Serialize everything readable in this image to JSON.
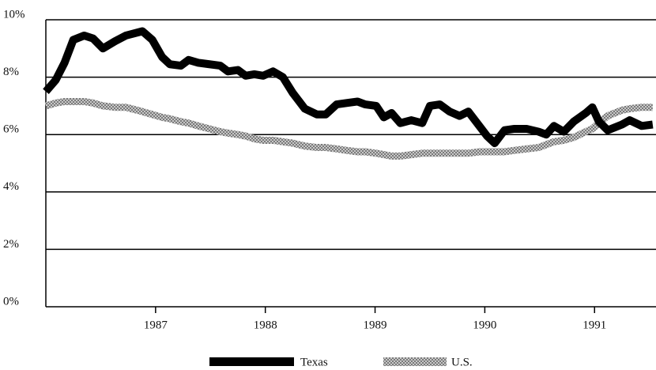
{
  "chart_data": {
    "type": "line",
    "x": [
      1986.0,
      1986.09,
      1986.17,
      1986.25,
      1986.35,
      1986.43,
      1986.52,
      1986.63,
      1986.73,
      1986.88,
      1986.97,
      1987.06,
      1987.13,
      1987.23,
      1987.3,
      1987.39,
      1987.49,
      1987.59,
      1987.66,
      1987.75,
      1987.82,
      1987.9,
      1987.98,
      1988.07,
      1988.16,
      1988.25,
      1988.36,
      1988.47,
      1988.55,
      1988.65,
      1988.74,
      1988.84,
      1988.91,
      1989.01,
      1989.08,
      1989.15,
      1989.23,
      1989.33,
      1989.43,
      1989.5,
      1989.59,
      1989.68,
      1989.77,
      1989.85,
      1989.95,
      1990.02,
      1990.09,
      1990.18,
      1990.27,
      1990.38,
      1990.49,
      1990.56,
      1990.63,
      1990.72,
      1990.81,
      1990.92,
      1990.98,
      1991.04,
      1991.12,
      1991.25,
      1991.32,
      1991.43,
      1991.53
    ],
    "series": [
      {
        "name": "Texas",
        "color": "#000000",
        "values": [
          7.5,
          7.9,
          8.5,
          9.3,
          9.45,
          9.35,
          9.0,
          9.25,
          9.45,
          9.6,
          9.3,
          8.7,
          8.45,
          8.4,
          8.6,
          8.5,
          8.45,
          8.4,
          8.2,
          8.25,
          8.05,
          8.1,
          8.05,
          8.2,
          8.0,
          7.45,
          6.9,
          6.7,
          6.7,
          7.05,
          7.1,
          7.15,
          7.05,
          7.0,
          6.6,
          6.75,
          6.4,
          6.5,
          6.4,
          7.0,
          7.05,
          6.8,
          6.65,
          6.8,
          6.3,
          5.95,
          5.7,
          6.15,
          6.2,
          6.2,
          6.1,
          6.0,
          6.3,
          6.1,
          6.45,
          6.75,
          6.95,
          6.45,
          6.15,
          6.35,
          6.5,
          6.3,
          6.35
        ]
      },
      {
        "name": "U.S.",
        "color": "#a0a0a0",
        "values": [
          7.0,
          7.1,
          7.15,
          7.15,
          7.15,
          7.1,
          7.0,
          6.95,
          6.95,
          6.8,
          6.7,
          6.6,
          6.55,
          6.45,
          6.4,
          6.3,
          6.2,
          6.1,
          6.05,
          6.0,
          5.95,
          5.85,
          5.8,
          5.8,
          5.75,
          5.7,
          5.6,
          5.55,
          5.55,
          5.5,
          5.45,
          5.4,
          5.4,
          5.35,
          5.3,
          5.25,
          5.25,
          5.3,
          5.35,
          5.35,
          5.35,
          5.35,
          5.35,
          5.35,
          5.4,
          5.4,
          5.4,
          5.4,
          5.45,
          5.5,
          5.55,
          5.65,
          5.75,
          5.8,
          5.9,
          6.1,
          6.2,
          6.4,
          6.65,
          6.85,
          6.9,
          6.95,
          6.95
        ]
      }
    ],
    "xlim": [
      1986.0,
      1991.56
    ],
    "xticks": [
      1987,
      1988,
      1989,
      1990,
      1991
    ],
    "ylim": [
      0,
      10
    ],
    "yticks": [
      {
        "value": 0,
        "label": "0%"
      },
      {
        "value": 2,
        "label": "2%"
      },
      {
        "value": 4,
        "label": "4%"
      },
      {
        "value": 6,
        "label": "6%"
      },
      {
        "value": 8,
        "label": "8%"
      },
      {
        "value": 10,
        "label": "10%"
      }
    ],
    "grid": true,
    "legend": "bottom"
  }
}
